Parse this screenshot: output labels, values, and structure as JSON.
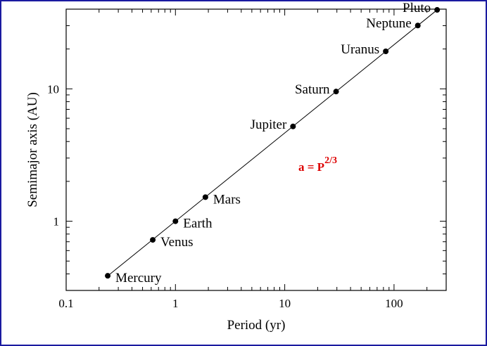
{
  "chart_data": {
    "type": "scatter",
    "xscale": "log",
    "yscale": "log",
    "xlim": [
      0.1,
      300
    ],
    "ylim": [
      0.3,
      40
    ],
    "xlabel": "Period (yr)",
    "ylabel": "Semimajor axis (AU)",
    "x_ticks": [
      {
        "value": 0.1,
        "label": "0.1"
      },
      {
        "value": 1,
        "label": "1"
      },
      {
        "value": 10,
        "label": "10"
      },
      {
        "value": 100,
        "label": "100"
      }
    ],
    "y_ticks": [
      {
        "value": 1,
        "label": "1"
      },
      {
        "value": 10,
        "label": "10"
      }
    ],
    "points": [
      {
        "label": "Mercury",
        "x": 0.24,
        "y": 0.387
      },
      {
        "label": "Venus",
        "x": 0.62,
        "y": 0.723
      },
      {
        "label": "Earth",
        "x": 1.0,
        "y": 1.0
      },
      {
        "label": "Mars",
        "x": 1.88,
        "y": 1.52
      },
      {
        "label": "Jupiter",
        "x": 11.9,
        "y": 5.2
      },
      {
        "label": "Saturn",
        "x": 29.5,
        "y": 9.54
      },
      {
        "label": "Uranus",
        "x": 84,
        "y": 19.2
      },
      {
        "label": "Neptune",
        "x": 165,
        "y": 30.1
      },
      {
        "label": "Pluto",
        "x": 248,
        "y": 39.5
      }
    ],
    "fit_line": {
      "x": [
        0.24,
        248
      ],
      "exponent": 0.6667
    },
    "annotation": {
      "base": "a = P",
      "superscript": "2/3"
    },
    "colors": {
      "annotation": "#dd0000",
      "frame": "#1a1aa0"
    }
  }
}
